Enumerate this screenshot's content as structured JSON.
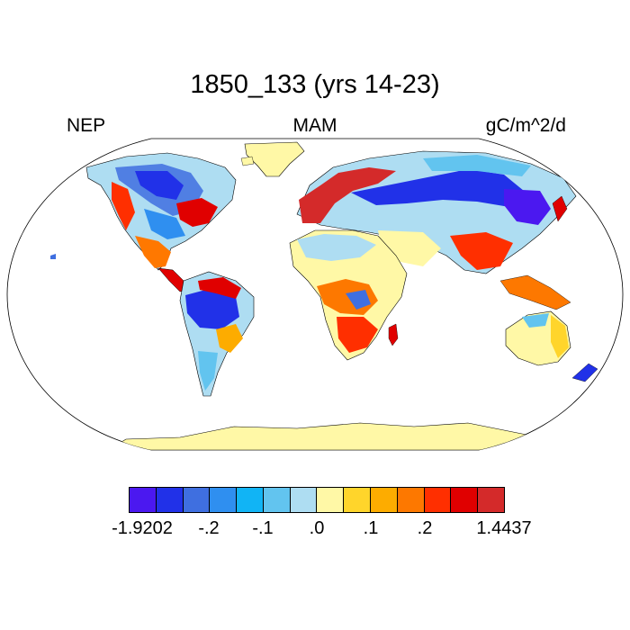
{
  "title": "1850_133 (yrs 14-23)",
  "left_label": "NEP",
  "center_label": "MAM",
  "units": "gC/m^2/d",
  "colorbar": {
    "colors": [
      "#4b18f0",
      "#2131e8",
      "#3f6fe0",
      "#2f8ff0",
      "#11b4f5",
      "#62c4ef",
      "#aeddf2",
      "#fff8a6",
      "#ffd52b",
      "#fdac00",
      "#fd7800",
      "#ff2f00",
      "#e00000",
      "#d42a2a"
    ],
    "labels": [
      "-1.9202",
      "-.2",
      "-.1",
      ".0",
      ".1",
      ".2",
      "1.4437"
    ]
  },
  "colors": {
    "ocean": "#ffffff",
    "coast": "#000000",
    "neutral_land": "#fff8a6",
    "light_blue_land": "#aeddf2"
  }
}
